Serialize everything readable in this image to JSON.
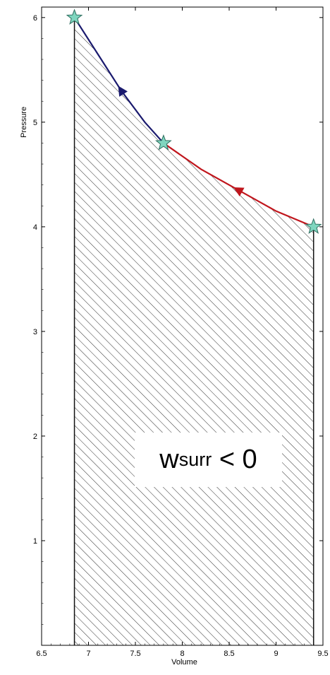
{
  "chart_data": {
    "type": "line",
    "xlabel": "Volume",
    "ylabel": "Pressure",
    "xlim": [
      6.5,
      9.5
    ],
    "ylim": [
      0,
      6.1
    ],
    "grid": false,
    "x_ticks": [
      6.5,
      7,
      7.5,
      8,
      8.5,
      9,
      9.5
    ],
    "x_tick_labels": [
      "6.5",
      "7",
      "7.5",
      "8",
      "8.5",
      "9",
      "9.5"
    ],
    "y_ticks": [
      1,
      2,
      3,
      4,
      5,
      6
    ],
    "y_tick_labels": [
      "1",
      "2",
      "3",
      "4",
      "5",
      "6"
    ],
    "series": [
      {
        "color": "#1a1a6e",
        "x": [
          6.85,
          7.1,
          7.35,
          7.6,
          7.8
        ],
        "y": [
          6.0,
          5.65,
          5.3,
          5.0,
          4.8
        ],
        "direction": "to-upper-left"
      },
      {
        "color": "#c0161d",
        "x": [
          7.8,
          8.2,
          8.6,
          9.0,
          9.4
        ],
        "y": [
          4.8,
          4.55,
          4.35,
          4.15,
          4.0
        ],
        "direction": "to-left"
      }
    ],
    "markers": [
      {
        "x": 6.85,
        "y": 6.0
      },
      {
        "x": 7.8,
        "y": 4.8
      },
      {
        "x": 9.4,
        "y": 4.0
      }
    ],
    "marker_color": "#7fd6bf",
    "hatched_region": {
      "x_from": 6.85,
      "x_to": 9.4,
      "boundary_x": [
        6.85,
        7.1,
        7.35,
        7.6,
        7.8,
        8.2,
        8.6,
        9.0,
        9.4
      ],
      "boundary_y": [
        6.0,
        5.65,
        5.3,
        5.0,
        4.8,
        4.55,
        4.35,
        4.15,
        4.0
      ]
    },
    "annotation": {
      "symbol": "w",
      "subscript": "surr",
      "relation": "< 0"
    }
  }
}
